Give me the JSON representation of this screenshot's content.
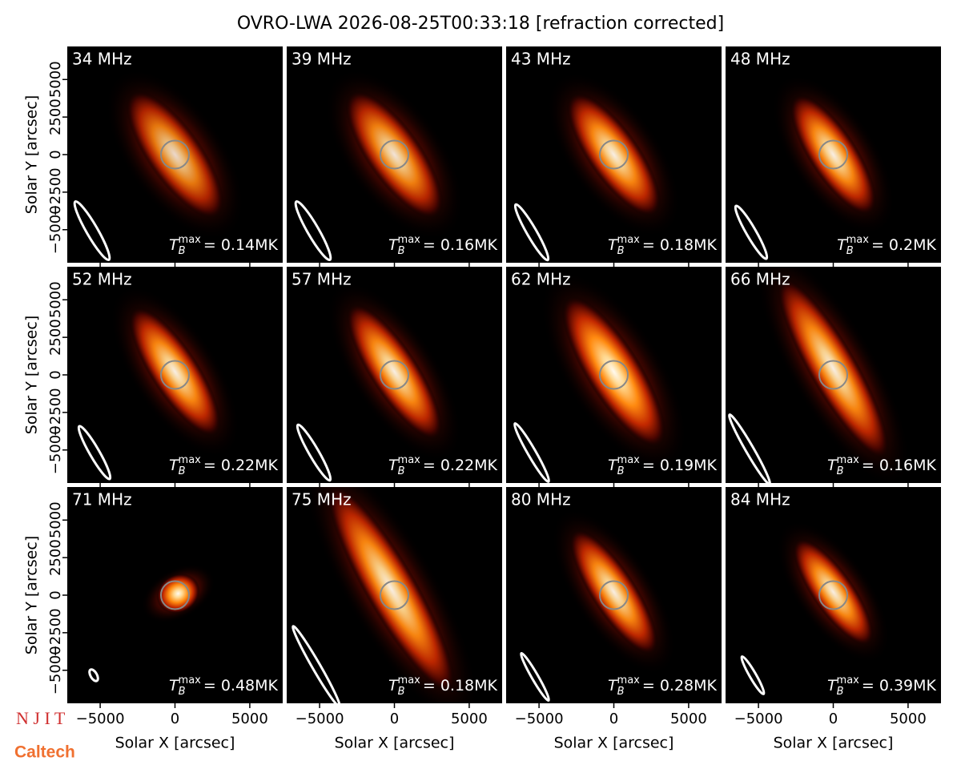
{
  "chart_data": {
    "type": "image-grid",
    "title": "OVRO-LWA 2026-08-25T00:33:18 [refraction corrected]",
    "xlabel": "Solar X [arcsec]",
    "ylabel": "Solar Y [arcsec]",
    "xlim": [
      -7200,
      7200
    ],
    "ylim": [
      -7200,
      7200
    ],
    "xticks": [
      {
        "value": -5000,
        "label": "−5000"
      },
      0,
      5000
    ],
    "yticks": [
      {
        "value": -5000,
        "label": "−5000"
      },
      {
        "value": -2500,
        "label": "−2500"
      },
      0,
      2500,
      5000
    ],
    "tb_symbol": "T",
    "tb_subscript": "B",
    "tb_superscript": "max",
    "panels": [
      {
        "label": "34 MHz",
        "tb_text": "= 0.14MK"
      },
      {
        "label": "39 MHz",
        "tb_text": "= 0.16MK"
      },
      {
        "label": "43 MHz",
        "tb_text": "= 0.18MK"
      },
      {
        "label": "48 MHz",
        "tb_text": "= 0.2MK"
      },
      {
        "label": "52 MHz",
        "tb_text": "= 0.22MK"
      },
      {
        "label": "57 MHz",
        "tb_text": "= 0.22MK"
      },
      {
        "label": "62 MHz",
        "tb_text": "= 0.19MK"
      },
      {
        "label": "66 MHz",
        "tb_text": "= 0.16MK"
      },
      {
        "label": "71 MHz",
        "tb_text": "= 0.48MK"
      },
      {
        "label": "75 MHz",
        "tb_text": "= 0.18MK"
      },
      {
        "label": "80 MHz",
        "tb_text": "= 0.28MK"
      },
      {
        "label": "84 MHz",
        "tb_text": "= 0.39MK"
      }
    ],
    "logos": [
      "N J I T",
      "Caltech"
    ]
  }
}
